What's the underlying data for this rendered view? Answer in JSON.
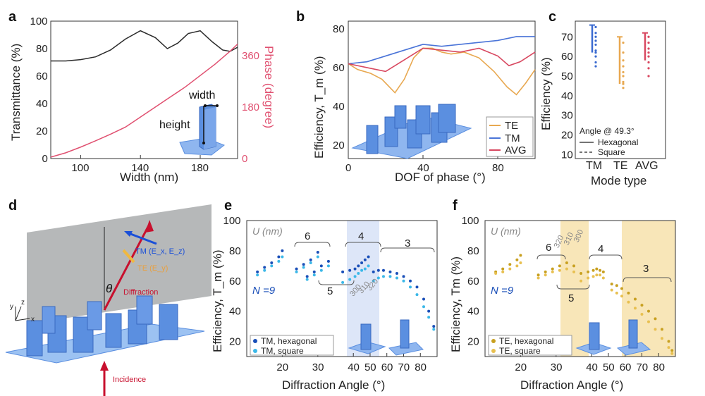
{
  "panels": {
    "a": "a",
    "b": "b",
    "c": "c",
    "d": "d",
    "e": "e",
    "f": "f"
  },
  "chart_data": [
    {
      "panel": "a",
      "type": "line",
      "xlabel": "Width (nm)",
      "ylabel": "Transmittance (%)",
      "ylabel_right": "Phase (degree)",
      "xticks": [
        "100",
        "140",
        "180"
      ],
      "yticks": [
        "0",
        "20",
        "40",
        "60",
        "80",
        "100"
      ],
      "yticks_right": [
        "0",
        "180",
        "360"
      ],
      "xlim": [
        80,
        205
      ],
      "ylim": [
        0,
        100
      ],
      "ylim_right": [
        0,
        480
      ],
      "annotations": [
        "width",
        "height"
      ],
      "colors": {
        "transmittance": "#2b2b2b",
        "phase": "#e05070"
      },
      "series": [
        {
          "axis": "left",
          "x": [
            80,
            90,
            100,
            110,
            120,
            130,
            140,
            150,
            158,
            165,
            172,
            180,
            188,
            195,
            200,
            205
          ],
          "values": [
            71,
            71,
            72,
            74,
            79,
            87,
            93,
            88,
            80,
            84,
            91,
            93,
            85,
            79,
            78,
            81
          ]
        },
        {
          "axis": "right",
          "x": [
            80,
            90,
            100,
            110,
            120,
            130,
            140,
            150,
            160,
            170,
            180,
            190,
            200,
            205
          ],
          "values": [
            5,
            20,
            40,
            62,
            85,
            110,
            145,
            180,
            215,
            250,
            290,
            330,
            375,
            400
          ]
        }
      ]
    },
    {
      "panel": "b",
      "type": "line",
      "xlabel": "DOF of phase (°)",
      "ylabel": "Efficiency, T_m (%)",
      "xticks": [
        "0",
        "40",
        "80"
      ],
      "yticks": [
        "20",
        "40",
        "60",
        "80"
      ],
      "xlim": [
        0,
        100
      ],
      "ylim": [
        13,
        84
      ],
      "legend_position": "bottom-right",
      "series": [
        {
          "name": "TE",
          "color": "#e8a850",
          "x": [
            0,
            5,
            12,
            18,
            25,
            30,
            35,
            40,
            45,
            50,
            55,
            62,
            70,
            78,
            85,
            90,
            95,
            100
          ],
          "values": [
            62,
            59,
            57,
            54,
            47,
            54,
            65,
            70,
            70,
            68,
            67,
            68,
            65,
            58,
            50,
            46,
            52,
            59
          ]
        },
        {
          "name": "TM",
          "color": "#4a74d8",
          "x": [
            0,
            10,
            20,
            30,
            40,
            50,
            60,
            70,
            80,
            90,
            100
          ],
          "values": [
            62,
            63,
            66,
            69,
            72,
            71,
            72,
            73,
            74,
            76,
            76
          ]
        },
        {
          "name": "AVG",
          "color": "#d84860",
          "x": [
            0,
            10,
            20,
            30,
            40,
            50,
            60,
            70,
            80,
            86,
            92,
            100
          ],
          "values": [
            62,
            60,
            58,
            64,
            70,
            69,
            68,
            70,
            66,
            61,
            63,
            68
          ]
        }
      ]
    },
    {
      "panel": "c",
      "type": "scatter",
      "xlabel": "Mode type",
      "ylabel": "Efficiency (%)",
      "categories": [
        "TM",
        "TE",
        "AVG"
      ],
      "yticks": [
        "10",
        "20",
        "30",
        "40",
        "50",
        "60",
        "70"
      ],
      "ylim": [
        8,
        78
      ],
      "legend_title": "Angle @ 49.3°",
      "legend_entries": [
        "Hexagonal",
        "Square"
      ],
      "series": [
        {
          "name": "TM",
          "color": "#3a6ad0",
          "range": [
            62,
            76
          ],
          "points": [
            75,
            72,
            70,
            68,
            66,
            63,
            62,
            60,
            57,
            55
          ]
        },
        {
          "name": "TE",
          "color": "#e8a850",
          "range": [
            46,
            70
          ],
          "points": [
            67,
            62,
            58,
            55,
            52,
            50,
            47,
            46,
            44
          ]
        },
        {
          "name": "AVG",
          "color": "#d84860",
          "range": [
            58,
            72
          ],
          "points": [
            70,
            67,
            64,
            62,
            60,
            57,
            54,
            50
          ]
        }
      ]
    },
    {
      "panel": "e",
      "type": "scatter",
      "xlabel": "Diffraction Angle (°)",
      "ylabel": "Efficiency, T_m (%)",
      "xticks": [
        "20",
        "30",
        "40",
        "50",
        "60",
        "70",
        "80"
      ],
      "yticks": [
        "20",
        "40",
        "60",
        "80",
        "100"
      ],
      "ylim": [
        10,
        100
      ],
      "unit_label": "U (nm)",
      "group_labels": [
        "N =9",
        "6",
        "5",
        "4",
        "3"
      ],
      "sub_labels": [
        "300",
        "310",
        "320"
      ],
      "legend_entries": [
        "TM, hexagonal",
        "TM, square"
      ],
      "series": [
        {
          "name": "TM, hexagonal",
          "color": "#1a4fb8",
          "x": [
            13,
            15,
            17,
            19,
            20,
            24,
            26,
            28,
            30,
            27,
            29,
            31,
            33,
            37,
            39,
            41,
            43,
            45,
            47,
            49,
            52,
            55,
            58,
            62,
            66,
            70,
            74,
            78,
            82,
            85,
            88
          ],
          "values": [
            66,
            69,
            72,
            76,
            80,
            68,
            71,
            74,
            79,
            63,
            66,
            70,
            73,
            66,
            67,
            68,
            70,
            72,
            74,
            76,
            66,
            67,
            67,
            66,
            65,
            63,
            60,
            56,
            48,
            40,
            30
          ]
        },
        {
          "name": "TM, square",
          "color": "#3bb8e8",
          "x": [
            13,
            15,
            17,
            19,
            20,
            24,
            26,
            28,
            30,
            27,
            29,
            31,
            33,
            37,
            39,
            41,
            43,
            45,
            47,
            49,
            52,
            55,
            58,
            62,
            66,
            70,
            74,
            78,
            82,
            85,
            88
          ],
          "values": [
            64,
            67,
            70,
            73,
            76,
            66,
            69,
            72,
            76,
            61,
            64,
            67,
            70,
            59,
            61,
            63,
            65,
            67,
            68,
            70,
            60,
            62,
            63,
            63,
            62,
            60,
            56,
            51,
            43,
            36,
            28
          ]
        }
      ]
    },
    {
      "panel": "f",
      "type": "scatter",
      "xlabel": "Diffraction Angle (°)",
      "ylabel": "Efficiency, Tm (%)",
      "xticks": [
        "20",
        "30",
        "40",
        "50",
        "60",
        "70",
        "80"
      ],
      "yticks": [
        "20",
        "40",
        "60",
        "80",
        "100"
      ],
      "ylim": [
        10,
        100
      ],
      "unit_label": "U (nm)",
      "group_labels": [
        "N =9",
        "6",
        "5",
        "4",
        "3"
      ],
      "sub_labels": [
        "300",
        "310",
        "320"
      ],
      "legend_entries": [
        "TE, hexagonal",
        "TE, square"
      ],
      "series": [
        {
          "name": "TE, hexagonal",
          "color": "#c8a020",
          "x": [
            13,
            15,
            17,
            19,
            20,
            25,
            27,
            29,
            31,
            33,
            35,
            37,
            39,
            41,
            43,
            45,
            47,
            52,
            55,
            58,
            62,
            66,
            70,
            74,
            78,
            82,
            86,
            88
          ],
          "values": [
            66,
            68,
            71,
            74,
            77,
            64,
            66,
            68,
            70,
            72,
            70,
            65,
            66,
            67,
            68,
            67,
            66,
            58,
            57,
            55,
            52,
            48,
            44,
            40,
            35,
            28,
            20,
            14
          ]
        },
        {
          "name": "TE, square",
          "color": "#e8c050",
          "x": [
            13,
            15,
            17,
            19,
            20,
            25,
            27,
            29,
            31,
            33,
            35,
            37,
            39,
            41,
            43,
            45,
            47,
            52,
            55,
            58,
            62,
            66,
            70,
            74,
            78,
            82,
            86,
            88
          ],
          "values": [
            65,
            66,
            68,
            70,
            72,
            62,
            64,
            66,
            67,
            68,
            66,
            60,
            62,
            63,
            64,
            64,
            62,
            54,
            52,
            50,
            46,
            42,
            38,
            33,
            28,
            22,
            16,
            12
          ]
        }
      ]
    }
  ],
  "schematic_d": {
    "labels": [
      "TM (E_x, E_z)",
      "TE (E_y)",
      "Diffraction",
      "Incidence",
      "θ"
    ],
    "axes": [
      "x",
      "y",
      "z"
    ],
    "colors": {
      "plane": "#a9abad",
      "pillar": "#5b8fe0",
      "red": "#c8102e",
      "blue": "#1a4fd8",
      "orange": "#f0b840"
    }
  }
}
